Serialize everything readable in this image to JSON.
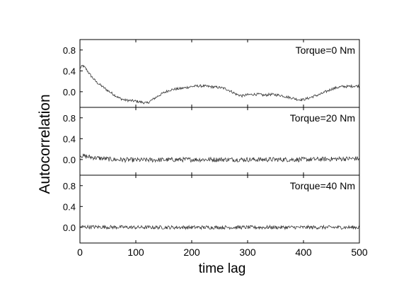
{
  "chart_data": {
    "type": "line",
    "ylabel": "Autocorrelation",
    "xlabel": "time lag",
    "xlim": [
      0,
      500
    ],
    "x_ticks": [
      0,
      100,
      200,
      300,
      400,
      500
    ],
    "x_tick_labels": [
      "0",
      "100",
      "200",
      "300",
      "400",
      "500"
    ],
    "y_ticks": [
      0.0,
      0.4,
      0.8
    ],
    "y_tick_labels": [
      "0.0",
      "0.4",
      "0.8"
    ],
    "grid": false,
    "line_color": "#333333",
    "panels": [
      {
        "label": "Torque=0 Nm",
        "ylim": [
          -0.3,
          1.0
        ],
        "noise": 0.025,
        "trend_x": [
          0,
          5,
          10,
          20,
          30,
          40,
          50,
          60,
          70,
          80,
          90,
          100,
          110,
          120,
          130,
          140,
          150,
          160,
          170,
          180,
          190,
          200,
          210,
          220,
          230,
          240,
          250,
          260,
          270,
          280,
          290,
          300,
          310,
          320,
          330,
          340,
          350,
          360,
          370,
          380,
          390,
          400,
          410,
          420,
          430,
          440,
          450,
          460,
          470,
          480,
          490,
          500
        ],
        "trend_y": [
          0.45,
          0.5,
          0.45,
          0.3,
          0.18,
          0.1,
          0.02,
          -0.05,
          -0.12,
          -0.16,
          -0.17,
          -0.18,
          -0.2,
          -0.22,
          -0.15,
          -0.08,
          -0.02,
          0.03,
          0.05,
          0.06,
          0.08,
          0.1,
          0.11,
          0.11,
          0.1,
          0.09,
          0.08,
          0.06,
          0.01,
          -0.05,
          -0.08,
          -0.06,
          -0.05,
          -0.05,
          -0.07,
          -0.05,
          -0.06,
          -0.07,
          -0.1,
          -0.12,
          -0.15,
          -0.15,
          -0.12,
          -0.08,
          -0.05,
          0.0,
          0.05,
          0.08,
          0.1,
          0.1,
          0.11,
          0.11
        ]
      },
      {
        "label": "Torque=20 Nm",
        "ylim": [
          -0.3,
          1.0
        ],
        "noise": 0.045,
        "trend_x": [
          0,
          10,
          30,
          60,
          100,
          200,
          300,
          400,
          500
        ],
        "trend_y": [
          0.08,
          0.06,
          0.03,
          0.0,
          -0.01,
          0.0,
          0.0,
          0.0,
          0.02
        ]
      },
      {
        "label": "Torque=40 Nm",
        "ylim": [
          -0.3,
          1.0
        ],
        "noise": 0.035,
        "trend_x": [
          0,
          100,
          200,
          300,
          400,
          500
        ],
        "trend_y": [
          0.01,
          0.0,
          0.0,
          0.0,
          0.0,
          0.0
        ]
      }
    ]
  }
}
